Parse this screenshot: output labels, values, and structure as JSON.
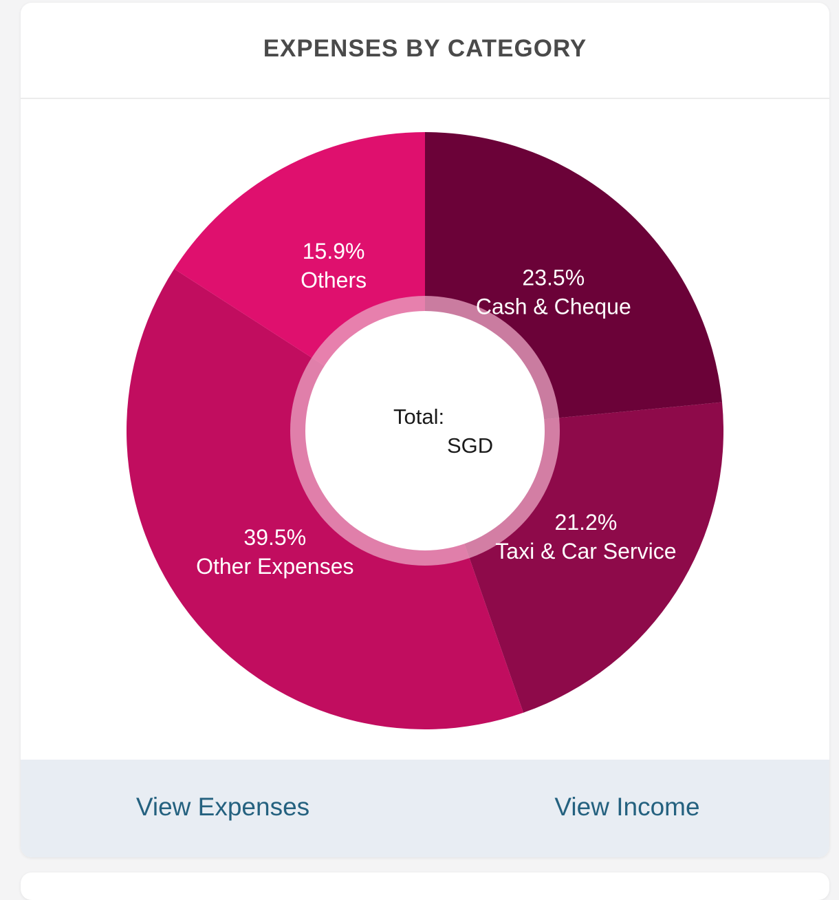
{
  "card": {
    "title": "EXPENSES BY CATEGORY"
  },
  "center": {
    "total_label": "Total:",
    "currency": "SGD"
  },
  "footer": {
    "view_expenses": "View Expenses",
    "view_income": "View Income"
  },
  "chart_data": {
    "type": "pie",
    "variant": "donut",
    "title": "EXPENSES BY CATEGORY",
    "slices": [
      {
        "label": "Cash & Cheque",
        "pct_text": "23.5%",
        "value": 23.5,
        "color": "#6b0238"
      },
      {
        "label": "Taxi & Car Service",
        "pct_text": "21.2%",
        "value": 21.2,
        "color": "#8e0a4a"
      },
      {
        "label": "Other Expenses",
        "pct_text": "39.5%",
        "value": 39.5,
        "color": "#c10d5f"
      },
      {
        "label": "Others",
        "pct_text": "15.9%",
        "value": 15.9,
        "color": "#df106e"
      }
    ],
    "start": "top",
    "direction": "clockwise"
  },
  "colors": {
    "title": "#4a4a4a",
    "link": "#24617f",
    "footer_bg": "#e8edf3",
    "inner_ring": "#e9a6c3"
  }
}
